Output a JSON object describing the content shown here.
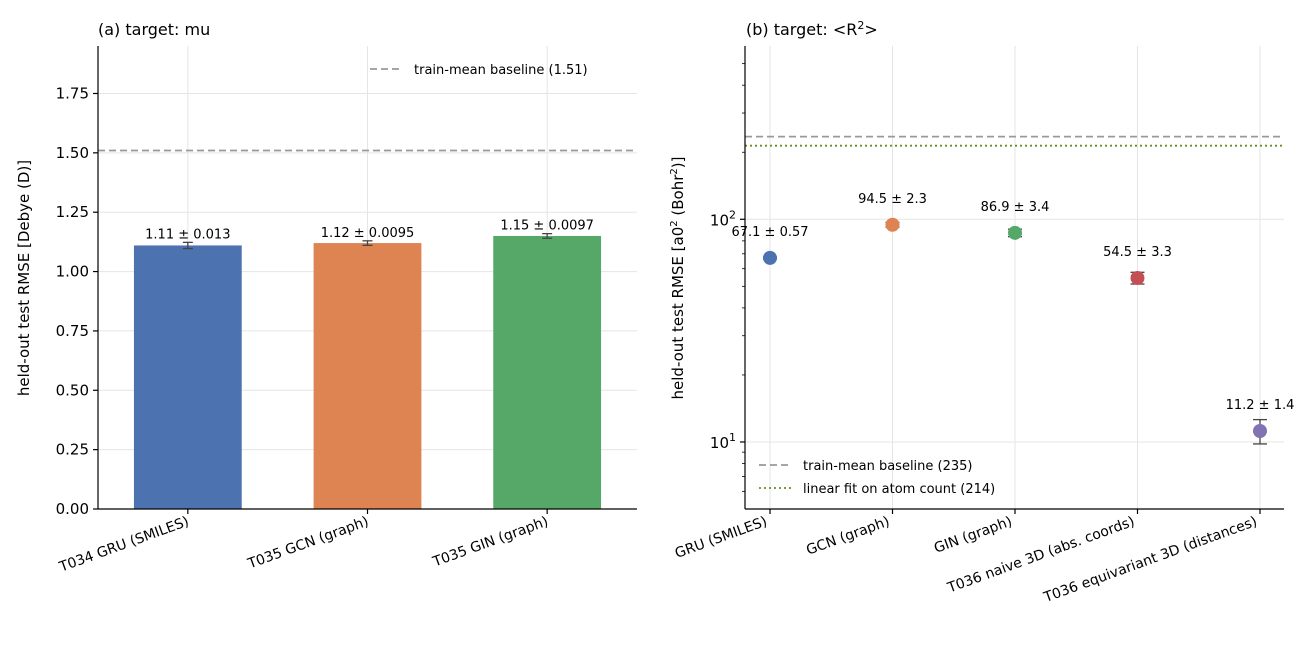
{
  "chart_data": [
    {
      "type": "bar",
      "title": "(a)  target: mu",
      "ylabel": "held-out test RMSE  [Debye (D)]",
      "ylim": [
        0,
        1.95
      ],
      "yticks": [
        0.0,
        0.25,
        0.5,
        0.75,
        1.0,
        1.25,
        1.5,
        1.75
      ],
      "ytick_labels": [
        "0.00",
        "0.25",
        "0.50",
        "0.75",
        "1.00",
        "1.25",
        "1.50",
        "1.75"
      ],
      "grid": true,
      "legend_position": "top-right",
      "categories": [
        "T034 GRU (SMILES)",
        "T035 GCN (graph)",
        "T035 GIN (graph)"
      ],
      "values": [
        1.11,
        1.12,
        1.15
      ],
      "errors": [
        0.013,
        0.0095,
        0.0097
      ],
      "value_labels": [
        "1.11 ± 0.013",
        "1.12 ± 0.0095",
        "1.15 ± 0.0097"
      ],
      "colors": [
        "#4c72b0",
        "#dd8452",
        "#55a868"
      ],
      "baselines": [
        {
          "label": "train-mean baseline (1.51)",
          "value": 1.51,
          "style": "dashed",
          "color": "#999999"
        }
      ]
    },
    {
      "type": "scatter",
      "title_prefix": "(b)  target: <R",
      "title_sup": "2",
      "title_suffix": ">",
      "ylabel_prefix": "held-out test RMSE  [a0",
      "ylabel_sup1": "2",
      "ylabel_mid": " (Bohr",
      "ylabel_sup2": "2",
      "ylabel_suffix": ")]",
      "yscale": "log",
      "ylim": [
        5,
        600
      ],
      "ytick_major": [
        10,
        100
      ],
      "ytick_labels": [
        {
          "base": "10",
          "exp": "1"
        },
        {
          "base": "10",
          "exp": "2"
        }
      ],
      "grid": true,
      "legend_position": "bottom-left",
      "categories": [
        "GRU (SMILES)",
        "GCN (graph)",
        "GIN (graph)",
        "T036 naive 3D (abs. coords)",
        "T036 equivariant 3D (distances)"
      ],
      "values": [
        67.1,
        94.5,
        86.9,
        54.5,
        11.2
      ],
      "errors": [
        0.57,
        2.3,
        3.4,
        3.3,
        1.4
      ],
      "value_labels": [
        "67.1 ± 0.57",
        "94.5 ± 2.3",
        "86.9 ± 3.4",
        "54.5 ± 3.3",
        "11.2 ± 1.4"
      ],
      "colors": [
        "#4c72b0",
        "#dd8452",
        "#55a868",
        "#c44e52",
        "#8172b3"
      ],
      "baselines": [
        {
          "label": "train-mean baseline (235)",
          "value": 235,
          "style": "dashed",
          "color": "#999999"
        },
        {
          "label": "linear fit on atom count (214)",
          "value": 214,
          "style": "dotted",
          "color": "#6b8e23"
        }
      ]
    }
  ]
}
